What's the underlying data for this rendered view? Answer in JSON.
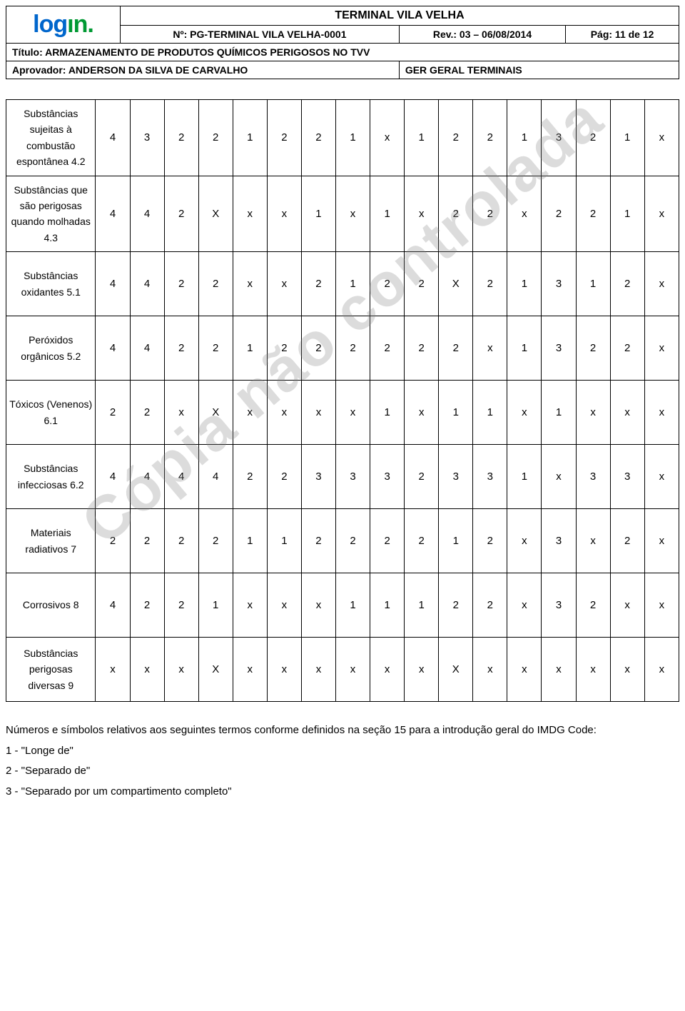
{
  "header": {
    "logo_part1": "log",
    "logo_part2": "ın.",
    "terminal_title": "TERMINAL VILA VELHA",
    "doc_no": "Nº: PG-TERMINAL VILA VELHA-0001",
    "rev": "Rev.: 03 – 06/08/2014",
    "pag": "Pág: 11 de 12",
    "titulo": "Título: ARMAZENAMENTO DE PRODUTOS QUÍMICOS PERIGOSOS NO TVV",
    "aprovador": "Aprovador: ANDERSON DA SILVA DE CARVALHO",
    "ger": "GER GERAL TERMINAIS"
  },
  "watermark": "Cópia não controlada",
  "table": {
    "rows": [
      {
        "label": "Substâncias sujeitas à combustão espontânea 4.2",
        "vals": [
          "4",
          "3",
          "2",
          "2",
          "1",
          "2",
          "2",
          "1",
          "x",
          "1",
          "2",
          "2",
          "1",
          "3",
          "2",
          "1",
          "x"
        ]
      },
      {
        "label": "Substâncias que são perigosas quando molhadas 4.3",
        "vals": [
          "4",
          "4",
          "2",
          "X",
          "x",
          "x",
          "1",
          "x",
          "1",
          "x",
          "2",
          "2",
          "x",
          "2",
          "2",
          "1",
          "x"
        ]
      },
      {
        "label": "Substâncias oxidantes 5.1",
        "vals": [
          "4",
          "4",
          "2",
          "2",
          "x",
          "x",
          "2",
          "1",
          "2",
          "2",
          "X",
          "2",
          "1",
          "3",
          "1",
          "2",
          "x"
        ]
      },
      {
        "label": "Peróxidos orgânicos 5.2",
        "vals": [
          "4",
          "4",
          "2",
          "2",
          "1",
          "2",
          "2",
          "2",
          "2",
          "2",
          "2",
          "x",
          "1",
          "3",
          "2",
          "2",
          "x"
        ]
      },
      {
        "label": "Tóxicos (Venenos) 6.1",
        "vals": [
          "2",
          "2",
          "x",
          "X",
          "x",
          "x",
          "x",
          "x",
          "1",
          "x",
          "1",
          "1",
          "x",
          "1",
          "x",
          "x",
          "x"
        ]
      },
      {
        "label": "Substâncias infecciosas 6.2",
        "vals": [
          "4",
          "4",
          "4",
          "4",
          "2",
          "2",
          "3",
          "3",
          "3",
          "2",
          "3",
          "3",
          "1",
          "x",
          "3",
          "3",
          "x"
        ]
      },
      {
        "label": "Materiais radiativos 7",
        "vals": [
          "2",
          "2",
          "2",
          "2",
          "1",
          "1",
          "2",
          "2",
          "2",
          "2",
          "1",
          "2",
          "x",
          "3",
          "x",
          "2",
          "x"
        ]
      },
      {
        "label": "Corrosivos 8",
        "vals": [
          "4",
          "2",
          "2",
          "1",
          "x",
          "x",
          "x",
          "1",
          "1",
          "1",
          "2",
          "2",
          "x",
          "3",
          "2",
          "x",
          "x"
        ]
      },
      {
        "label": "Substâncias perigosas diversas 9",
        "vals": [
          "x",
          "x",
          "x",
          "X",
          "x",
          "x",
          "x",
          "x",
          "x",
          "x",
          "X",
          "x",
          "x",
          "x",
          "x",
          "x",
          "x"
        ]
      }
    ]
  },
  "footer": {
    "intro": "Números e símbolos relativos aos seguintes termos conforme definidos na seção 15 para a introdução geral do IMDG Code:",
    "line1": "1 - \"Longe de\"",
    "line2": "2 - \"Separado de\"",
    "line3": "3 - \"Separado por um compartimento completo\""
  }
}
